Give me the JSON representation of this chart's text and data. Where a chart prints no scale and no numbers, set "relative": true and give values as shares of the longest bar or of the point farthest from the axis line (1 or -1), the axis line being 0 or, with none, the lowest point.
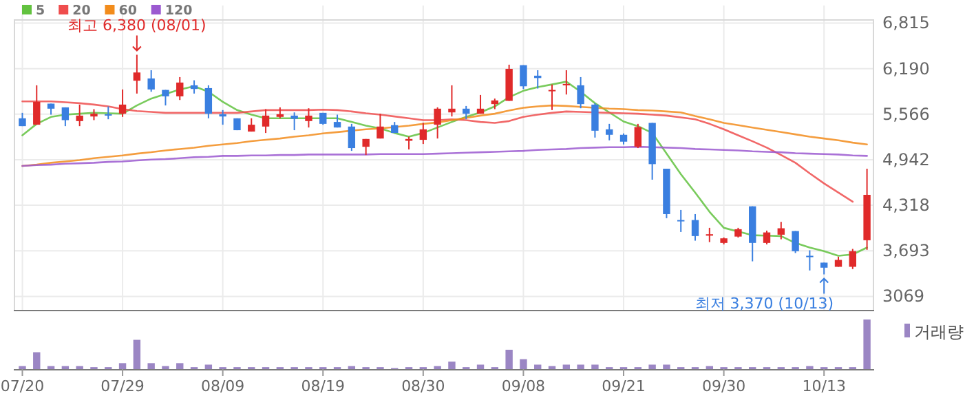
{
  "chart_data": [
    {
      "type": "candlestick",
      "categories": [
        "07/20",
        null,
        null,
        null,
        null,
        null,
        null,
        "07/29",
        null,
        null,
        null,
        null,
        null,
        null,
        "08/09",
        null,
        null,
        null,
        null,
        null,
        null,
        "08/19",
        null,
        null,
        null,
        null,
        null,
        null,
        "08/30",
        null,
        null,
        null,
        null,
        null,
        null,
        "09/08",
        null,
        null,
        null,
        null,
        null,
        null,
        "09/21",
        null,
        null,
        null,
        null,
        null,
        null,
        "09/30",
        null,
        null,
        null,
        null,
        null,
        null,
        "10/13",
        null,
        null,
        null
      ],
      "ohlc": [
        [
          5509,
          5584,
          5402,
          5402
        ],
        [
          5421,
          5961,
          5421,
          5735
        ],
        [
          5710,
          5710,
          5559,
          5641
        ],
        [
          5659,
          5659,
          5402,
          5484
        ],
        [
          5471,
          5697,
          5402,
          5546
        ],
        [
          5534,
          5634,
          5484,
          5572
        ],
        [
          5565,
          5672,
          5496,
          5553
        ],
        [
          5572,
          5904,
          5528,
          5697
        ],
        [
          6024,
          6380,
          5848,
          6137
        ],
        [
          6055,
          6168,
          5873,
          5904
        ],
        [
          5898,
          5898,
          5685,
          5810
        ],
        [
          5810,
          6074,
          5760,
          5999
        ],
        [
          5961,
          6030,
          5848,
          5911
        ],
        [
          5923,
          5961,
          5509,
          5572
        ],
        [
          5565,
          5622,
          5421,
          5534
        ],
        [
          5509,
          5509,
          5346,
          5346
        ],
        [
          5327,
          5509,
          5327,
          5421
        ],
        [
          5396,
          5634,
          5308,
          5546
        ],
        [
          5528,
          5659,
          5509,
          5565
        ],
        [
          5546,
          5590,
          5346,
          5502
        ],
        [
          5471,
          5647,
          5383,
          5546
        ],
        [
          5584,
          5584,
          5421,
          5433
        ],
        [
          5459,
          5559,
          5383,
          5383
        ],
        [
          5396,
          5433,
          5063,
          5101
        ],
        [
          5119,
          5226,
          5006,
          5226
        ],
        [
          5232,
          5572,
          5232,
          5396
        ],
        [
          5415,
          5459,
          5308,
          5308
        ],
        [
          5201,
          5257,
          5082,
          5226
        ],
        [
          5214,
          5446,
          5157,
          5358
        ],
        [
          5421,
          5659,
          5232,
          5641
        ],
        [
          5590,
          5961,
          5534,
          5641
        ],
        [
          5641,
          5678,
          5496,
          5572
        ],
        [
          5572,
          5829,
          5572,
          5641
        ],
        [
          5704,
          5779,
          5634,
          5754
        ],
        [
          5748,
          6244,
          5748,
          6187
        ],
        [
          6237,
          6237,
          5911,
          5948
        ],
        [
          6093,
          6168,
          5917,
          6061
        ],
        [
          5886,
          5973,
          5622,
          5898
        ],
        [
          5961,
          6168,
          5835,
          5980
        ],
        [
          5961,
          6074,
          5647,
          5704
        ],
        [
          5697,
          5716,
          5245,
          5339
        ],
        [
          5358,
          5433,
          5207,
          5283
        ],
        [
          5283,
          5302,
          5151,
          5189
        ],
        [
          5119,
          5433,
          5101,
          5389
        ],
        [
          5446,
          5446,
          4668,
          4881
        ],
        [
          4818,
          4818,
          4140,
          4196
        ],
        [
          4115,
          4253,
          3951,
          4102
        ],
        [
          4115,
          4196,
          3832,
          3895
        ],
        [
          3910,
          4008,
          3813,
          3920
        ],
        [
          3801,
          3876,
          3782,
          3864
        ],
        [
          3888,
          4008,
          3876,
          3989
        ],
        [
          4303,
          4303,
          3549,
          3801
        ],
        [
          3801,
          3970,
          3782,
          3945
        ],
        [
          3914,
          4090,
          3851,
          4002
        ],
        [
          3964,
          3964,
          3663,
          3688
        ],
        [
          3625,
          3700,
          3424,
          3612
        ],
        [
          3531,
          3531,
          3370,
          3462
        ],
        [
          3474,
          3612,
          3474,
          3569
        ],
        [
          3474,
          3719,
          3443,
          3688
        ],
        [
          3838,
          4818,
          3707,
          4460
        ]
      ],
      "colors": [
        "#3a7fe0",
        "#e02a2a",
        "#3a7fe0",
        "#3a7fe0",
        "#e02a2a",
        "#e02a2a",
        "#3a7fe0",
        "#e02a2a",
        "#e02a2a",
        "#3a7fe0",
        "#3a7fe0",
        "#e02a2a",
        "#3a7fe0",
        "#3a7fe0",
        "#3a7fe0",
        "#3a7fe0",
        "#e02a2a",
        "#e02a2a",
        "#e02a2a",
        "#3a7fe0",
        "#e02a2a",
        "#3a7fe0",
        "#3a7fe0",
        "#3a7fe0",
        "#e02a2a",
        "#e02a2a",
        "#3a7fe0",
        "#e02a2a",
        "#e02a2a",
        "#e02a2a",
        "#e02a2a",
        "#3a7fe0",
        "#e02a2a",
        "#e02a2a",
        "#e02a2a",
        "#3a7fe0",
        "#3a7fe0",
        "#e02a2a",
        "#e02a2a",
        "#3a7fe0",
        "#3a7fe0",
        "#3a7fe0",
        "#3a7fe0",
        "#e02a2a",
        "#3a7fe0",
        "#3a7fe0",
        "#3a7fe0",
        "#3a7fe0",
        "#e02a2a",
        "#e02a2a",
        "#e02a2a",
        "#3a7fe0",
        "#e02a2a",
        "#e02a2a",
        "#3a7fe0",
        "#3a7fe0",
        "#3a7fe0",
        "#e02a2a",
        "#e02a2a",
        "#e02a2a"
      ],
      "series": [
        {
          "name": "5",
          "type": "line",
          "color": "#62c23f",
          "values": [
            5276,
            5433,
            5528,
            5559,
            5572,
            5584,
            5578,
            5572,
            5685,
            5779,
            5842,
            5904,
            5948,
            5873,
            5735,
            5622,
            5559,
            5509,
            5509,
            5509,
            5509,
            5509,
            5509,
            5459,
            5408,
            5371,
            5308,
            5258,
            5308,
            5383,
            5459,
            5528,
            5590,
            5672,
            5798,
            5886,
            5936,
            5973,
            6011,
            5873,
            5716,
            5590,
            5465,
            5402,
            5308,
            5025,
            4743,
            4491,
            4228,
            4008,
            3958,
            3907,
            3901,
            3895,
            3801,
            3738,
            3688,
            3625,
            3644,
            3738
          ]
        },
        {
          "name": "20",
          "type": "line",
          "color": "#ef4d4d",
          "values": [
            5741,
            5741,
            5741,
            5729,
            5716,
            5697,
            5672,
            5634,
            5609,
            5597,
            5584,
            5584,
            5584,
            5584,
            5584,
            5584,
            5603,
            5622,
            5622,
            5622,
            5622,
            5628,
            5622,
            5603,
            5578,
            5559,
            5534,
            5509,
            5484,
            5484,
            5496,
            5484,
            5459,
            5446,
            5471,
            5528,
            5559,
            5584,
            5603,
            5597,
            5590,
            5584,
            5578,
            5572,
            5559,
            5546,
            5521,
            5496,
            5433,
            5358,
            5276,
            5195,
            5107,
            5006,
            4900,
            4755,
            4617,
            4491,
            4366,
            null
          ]
        },
        {
          "name": "60",
          "type": "line",
          "color": "#f28c1c",
          "values": [
            4856,
            4874,
            4900,
            4918,
            4937,
            4962,
            4981,
            5000,
            5025,
            5044,
            5069,
            5088,
            5107,
            5132,
            5151,
            5170,
            5195,
            5214,
            5232,
            5258,
            5276,
            5302,
            5320,
            5339,
            5358,
            5371,
            5389,
            5408,
            5433,
            5452,
            5484,
            5515,
            5546,
            5572,
            5616,
            5653,
            5672,
            5685,
            5678,
            5666,
            5653,
            5641,
            5634,
            5622,
            5616,
            5603,
            5590,
            5540,
            5496,
            5446,
            5415,
            5383,
            5352,
            5320,
            5289,
            5258,
            5232,
            5207,
            5176,
            5151
          ]
        },
        {
          "name": "120",
          "type": "line",
          "color": "#9b59d0",
          "values": [
            4856,
            4868,
            4874,
            4887,
            4893,
            4900,
            4912,
            4918,
            4931,
            4944,
            4950,
            4962,
            4975,
            4981,
            4994,
            4994,
            5000,
            5000,
            5006,
            5006,
            5013,
            5013,
            5013,
            5013,
            5013,
            5019,
            5019,
            5019,
            5019,
            5025,
            5031,
            5038,
            5044,
            5050,
            5057,
            5063,
            5075,
            5082,
            5088,
            5101,
            5107,
            5113,
            5113,
            5119,
            5113,
            5107,
            5101,
            5088,
            5082,
            5075,
            5069,
            5057,
            5050,
            5044,
            5031,
            5025,
            5019,
            5013,
            5000,
            4994
          ]
        }
      ],
      "ylim": [
        2884,
        6866
      ],
      "yticks": [
        3069,
        {
          "value": 3693,
          "label": "3,693"
        },
        {
          "value": 4318,
          "label": "4,318"
        },
        {
          "value": 4942,
          "label": "4,942"
        },
        {
          "value": 5566,
          "label": "5,566"
        },
        {
          "value": 6190,
          "label": "6,190"
        },
        {
          "value": 6815,
          "label": "6,815"
        }
      ],
      "grid": true,
      "legend": "top left",
      "tick_labels": "y",
      "annotations": [
        {
          "text": "최고 6,380 (08/01)",
          "y": 6380
        },
        {
          "text": "최저 3,370 (10/13)",
          "x": "10/13",
          "y": 3370
        }
      ]
    },
    {
      "type": "bar",
      "categories": [
        "07/20",
        null,
        null,
        null,
        null,
        null,
        null,
        "07/29",
        null,
        null,
        null,
        null,
        null,
        null,
        "08/09",
        null,
        null,
        null,
        null,
        null,
        null,
        "08/19",
        null,
        null,
        null,
        null,
        null,
        null,
        "08/30",
        null,
        null,
        null,
        null,
        null,
        null,
        "09/08",
        null,
        null,
        null,
        null,
        null,
        null,
        "09/21",
        null,
        null,
        null,
        null,
        null,
        null,
        "09/30",
        null,
        null,
        null,
        null,
        null,
        null,
        "10/13",
        null,
        null,
        null
      ],
      "relative": true,
      "series": [
        {
          "name": "거래량",
          "color": "#9b86c4",
          "values": [
            0.06,
            0.34,
            0.06,
            0.06,
            0.06,
            0.04,
            0.04,
            0.12,
            0.59,
            0.12,
            0.06,
            0.12,
            0.04,
            0.09,
            0.04,
            0.04,
            0.04,
            0.04,
            0.04,
            0.04,
            0.04,
            0.04,
            0.04,
            0.06,
            0.04,
            0.04,
            0.02,
            0.04,
            0.04,
            0.06,
            0.15,
            0.04,
            0.09,
            0.04,
            0.39,
            0.2,
            0.09,
            0.06,
            0.09,
            0.09,
            0.09,
            0.04,
            0.04,
            0.04,
            0.09,
            0.09,
            0.04,
            0.04,
            0.06,
            0.04,
            0.04,
            0.04,
            0.04,
            0.04,
            0.04,
            0.06,
            0.04,
            0.04,
            0.04,
            1
          ]
        }
      ],
      "legend": "top right",
      "tick_labels": "x"
    }
  ]
}
